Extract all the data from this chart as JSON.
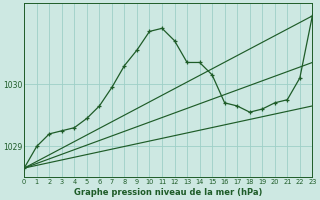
{
  "title": "Graphe pression niveau de la mer (hPa)",
  "bg_color": "#cde8e2",
  "grid_color": "#9ecfc7",
  "line_color": "#1e5c28",
  "x_min": 0,
  "x_max": 23,
  "y_min": 1028.5,
  "y_max": 1031.3,
  "y_ticks": [
    1029,
    1030
  ],
  "main_curve": [
    [
      0,
      1028.65
    ],
    [
      1,
      1029.0
    ],
    [
      2,
      1029.2
    ],
    [
      3,
      1029.25
    ],
    [
      4,
      1029.3
    ],
    [
      5,
      1029.45
    ],
    [
      6,
      1029.65
    ],
    [
      7,
      1029.95
    ],
    [
      8,
      1030.3
    ],
    [
      9,
      1030.55
    ],
    [
      10,
      1030.85
    ],
    [
      11,
      1030.9
    ],
    [
      12,
      1030.7
    ],
    [
      13,
      1030.35
    ],
    [
      14,
      1030.35
    ],
    [
      15,
      1030.15
    ],
    [
      16,
      1029.7
    ],
    [
      17,
      1029.65
    ],
    [
      18,
      1029.55
    ],
    [
      19,
      1029.6
    ],
    [
      20,
      1029.7
    ],
    [
      21,
      1029.75
    ],
    [
      22,
      1030.1
    ],
    [
      23,
      1031.1
    ]
  ],
  "trend_line1": [
    [
      0,
      1028.65
    ],
    [
      23,
      1031.1
    ]
  ],
  "trend_line2": [
    [
      0,
      1028.65
    ],
    [
      23,
      1030.35
    ]
  ],
  "trend_line3": [
    [
      0,
      1028.65
    ],
    [
      23,
      1029.65
    ]
  ]
}
